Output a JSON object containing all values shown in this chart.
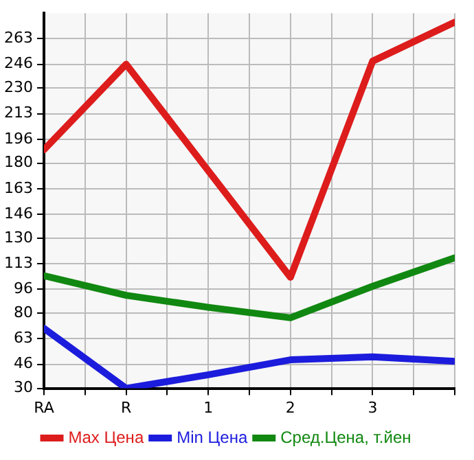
{
  "chart_data": {
    "type": "line",
    "categories": [
      "RA",
      "R",
      "1",
      "2",
      "3",
      null
    ],
    "series": [
      {
        "name": "Max Цена",
        "color": "#dd1c1c",
        "values": [
          189,
          246,
          175,
          104,
          248,
          274
        ]
      },
      {
        "name": "Min Цена",
        "color": "#1c1cdd",
        "values": [
          70,
          30,
          39,
          49,
          51,
          48
        ]
      },
      {
        "name": "Сред.Цена, т.йен",
        "color": "#118811",
        "values": [
          105,
          92,
          84,
          77,
          98,
          117
        ]
      }
    ],
    "ylim": [
      30,
      280
    ],
    "yticks": [
      30,
      46,
      63,
      80,
      96,
      113,
      130,
      146,
      163,
      180,
      196,
      213,
      230,
      246,
      263
    ],
    "grid": true,
    "legend": "bottom",
    "marker": "none",
    "line_style": "solid"
  }
}
